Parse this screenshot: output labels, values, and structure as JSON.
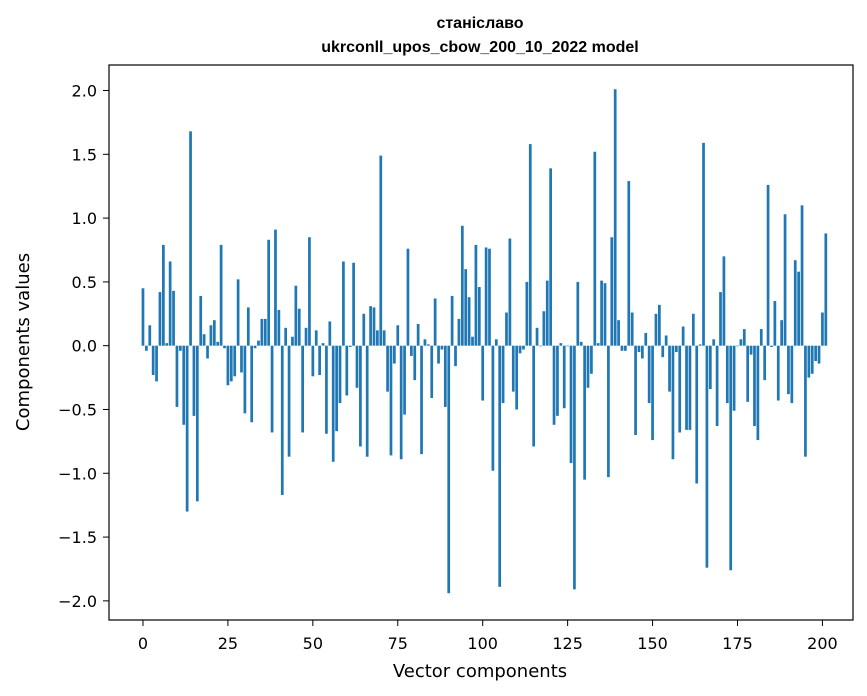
{
  "chart_data": {
    "type": "bar",
    "title": "станіславо",
    "subtitle": "ukrconll_upos_cbow_200_10_2022 model",
    "xlabel": "Vector components",
    "ylabel": "Components values",
    "xlim": [
      -10,
      209
    ],
    "ylim": [
      -2.15,
      2.2
    ],
    "xticks": [
      0,
      25,
      50,
      75,
      100,
      125,
      150,
      175,
      200
    ],
    "yticks": [
      -2.0,
      -1.5,
      -1.0,
      -0.5,
      0.0,
      0.5,
      1.0,
      1.5,
      2.0
    ],
    "xtick_labels": [
      "0",
      "25",
      "50",
      "75",
      "100",
      "125",
      "150",
      "175",
      "200"
    ],
    "ytick_labels": [
      "−2.0",
      "−1.5",
      "−1.0",
      "−0.5",
      "0.0",
      "0.5",
      "1.0",
      "1.5",
      "2.0"
    ],
    "bar_color": "#1f77b4",
    "grid": false,
    "values": [
      0.45,
      -0.04,
      0.16,
      -0.23,
      -0.28,
      0.42,
      0.79,
      0.02,
      0.66,
      0.43,
      -0.48,
      -0.04,
      -0.62,
      -1.3,
      1.68,
      -0.55,
      -1.22,
      0.39,
      0.09,
      -0.1,
      0.16,
      0.2,
      0.03,
      0.79,
      -0.02,
      -0.31,
      -0.28,
      -0.24,
      0.52,
      -0.21,
      -0.53,
      0.3,
      -0.6,
      -0.02,
      0.04,
      0.21,
      0.21,
      0.83,
      -0.68,
      0.91,
      0.28,
      -1.17,
      0.14,
      -0.87,
      0.07,
      0.47,
      0.29,
      -0.68,
      0.14,
      0.85,
      -0.24,
      0.12,
      -0.23,
      0.02,
      -0.69,
      0.19,
      -0.91,
      -0.67,
      -0.45,
      0.66,
      -0.39,
      -0.01,
      0.65,
      -0.33,
      -0.79,
      0.25,
      -0.87,
      0.31,
      0.3,
      0.12,
      1.49,
      0.12,
      -0.36,
      -0.86,
      -0.14,
      0.16,
      -0.89,
      -0.54,
      0.76,
      -0.08,
      -0.27,
      0.17,
      -0.85,
      0.05,
      0.01,
      -0.41,
      0.37,
      -0.14,
      -0.03,
      -0.48,
      -1.94,
      0.39,
      -0.16,
      0.21,
      0.94,
      0.6,
      0.38,
      0.07,
      0.79,
      0.46,
      -0.43,
      0.77,
      0.76,
      -0.98,
      0.05,
      -1.89,
      -0.45,
      0.26,
      0.84,
      -0.36,
      -0.5,
      -0.06,
      -0.03,
      0.5,
      1.58,
      -0.79,
      0.14,
      0.0,
      0.27,
      0.51,
      1.39,
      -0.62,
      -0.55,
      0.02,
      -0.49,
      0.0,
      -0.92,
      -1.91,
      0.5,
      0.03,
      -1.05,
      -0.33,
      -0.22,
      1.52,
      0.02,
      0.51,
      0.49,
      -1.03,
      0.85,
      2.01,
      0.2,
      -0.04,
      -0.04,
      1.29,
      0.26,
      -0.7,
      -0.05,
      -0.1,
      0.1,
      -0.45,
      -0.74,
      0.25,
      0.32,
      -0.09,
      0.08,
      -0.36,
      -0.89,
      -0.05,
      -0.68,
      0.15,
      -0.66,
      -0.66,
      0.25,
      -1.08,
      0.01,
      1.59,
      -1.74,
      -0.34,
      0.05,
      -0.63,
      0.42,
      0.7,
      -0.45,
      -1.76,
      -0.51,
      0.0,
      0.05,
      0.13,
      -0.44,
      -0.07,
      -0.63,
      -0.74,
      0.13,
      -0.27,
      1.26,
      -0.01,
      0.35,
      -0.43,
      0.2,
      1.03,
      -0.38,
      -0.45,
      0.67,
      0.58,
      1.1,
      -0.87,
      -0.25,
      -0.22,
      -0.12,
      -0.14,
      0.26,
      0.88
    ]
  }
}
